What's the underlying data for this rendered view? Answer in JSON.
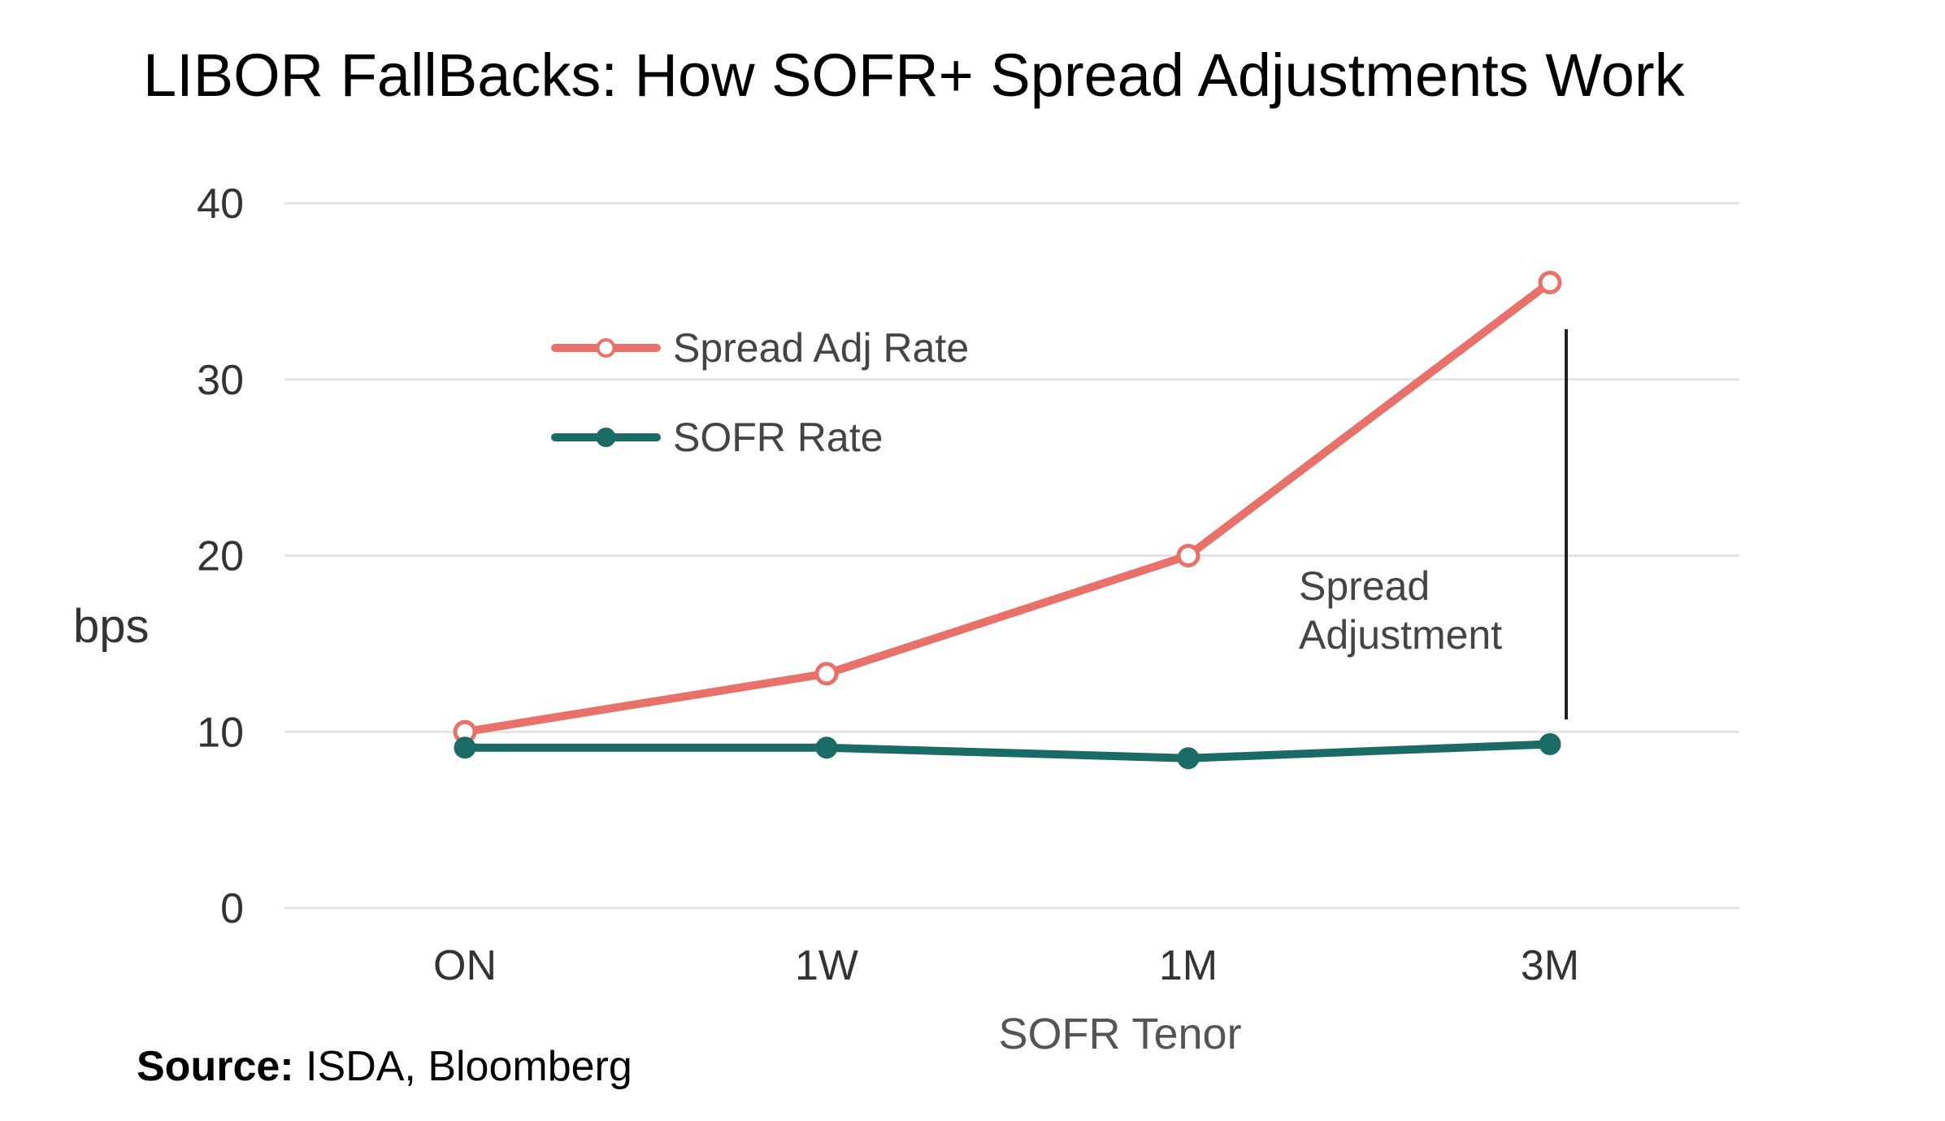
{
  "chart_data": {
    "type": "line",
    "title": "LIBOR FallBacks: How SOFR+ Spread Adjustments Work",
    "xlabel": "SOFR Tenor",
    "ylabel": "bps",
    "categories": [
      "ON",
      "1W",
      "1M",
      "3M"
    ],
    "ylim": [
      0,
      40
    ],
    "yticks": [
      0,
      10,
      20,
      30,
      40
    ],
    "grid": true,
    "legend_position": "upper-left",
    "series": [
      {
        "name": "Spread Adj Rate",
        "color": "#e8716a",
        "marker": "hollow-circle",
        "values": [
          10.0,
          13.3,
          20.0,
          35.5
        ]
      },
      {
        "name": "SOFR Rate",
        "color": "#1a6b66",
        "marker": "filled-circle",
        "values": [
          9.1,
          9.1,
          8.5,
          9.3
        ]
      }
    ],
    "annotation": {
      "text_line1": "Spread",
      "text_line2": "Adjustment",
      "category": "3M"
    }
  },
  "source": {
    "label": "Source:",
    "text": " ISDA, Bloomberg"
  }
}
